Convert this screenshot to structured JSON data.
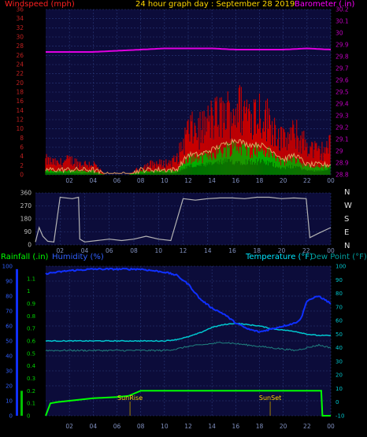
{
  "header": {
    "title": "24 hour graph day : September 28 2019",
    "left_label": "Windspeed (mph)",
    "right_label": "Barometer (.in)"
  },
  "lower_header": {
    "rainfall_label": "Rainfall (.in)",
    "humidity_label": "Humidity (%)",
    "temperature_label": "Temperature (°F)",
    "dewpoint_label": "Dew Point (°F)"
  },
  "colors": {
    "background": "#000000",
    "plot_bg": "#0c0c3a",
    "grid": "#2a3a7a",
    "axis_text": "#8090c0",
    "title": "#ffd700",
    "windspeed_label": "#ff2020",
    "barometer_label": "#ff00ff",
    "rainfall_label": "#00ff00",
    "humidity_label": "#3060ff",
    "temperature_label": "#00e5ff",
    "dewpoint_label": "#00a0a0"
  },
  "chart_data": [
    {
      "type": "area",
      "name": "wind",
      "x_ticks": [
        "02",
        "04",
        "06",
        "08",
        "10",
        "12",
        "14",
        "16",
        "18",
        "20",
        "22",
        "00"
      ],
      "left_axis": {
        "label": "Windspeed (mph)",
        "ylim": [
          0,
          36
        ],
        "ticks": [
          0,
          2,
          4,
          6,
          8,
          10,
          12,
          14,
          16,
          18,
          20,
          22,
          24,
          26,
          28,
          30,
          32,
          34,
          36
        ]
      },
      "right_axis": {
        "label": "Barometer (.in)",
        "ylim": [
          28.8,
          30.2
        ],
        "ticks": [
          "28.8",
          "28.9",
          "29",
          "29.1",
          "29.2",
          "29.3",
          "29.4",
          "29.5",
          "29.6",
          "29.7",
          "29.8",
          "29.9",
          "30",
          "30.1",
          "30.2"
        ]
      },
      "series": [
        {
          "name": "Windspeed (mph)",
          "color": "#e00000",
          "hours": [
            0,
            1,
            2,
            3,
            4,
            5,
            6,
            7,
            8,
            9,
            10,
            11,
            12,
            13,
            14,
            15,
            16,
            17,
            18,
            19,
            20,
            21,
            22,
            23,
            24
          ],
          "gust": [
            4,
            3,
            4,
            3,
            3,
            0,
            0,
            0,
            2,
            3,
            3,
            4,
            12,
            12,
            15,
            16,
            18,
            17,
            17,
            14,
            9,
            11,
            8,
            6,
            8
          ],
          "avg": [
            1,
            1,
            1,
            1,
            1,
            0,
            0,
            0,
            1,
            1,
            1,
            1,
            4,
            4,
            5,
            6,
            7,
            6,
            6,
            5,
            3,
            4,
            2,
            2,
            2
          ],
          "low": [
            0.5,
            0.5,
            0.5,
            0.3,
            0.5,
            0,
            0,
            0,
            0.3,
            0.5,
            0.5,
            0.5,
            2,
            2,
            2.5,
            3,
            3,
            3,
            3,
            2.5,
            1.5,
            2,
            1,
            1,
            1.5
          ]
        },
        {
          "name": "Barometer (.in)",
          "color": "#e000e0",
          "hours": [
            0,
            2,
            4,
            6,
            8,
            10,
            12,
            14,
            16,
            18,
            20,
            22,
            24
          ],
          "values": [
            29.84,
            29.84,
            29.84,
            29.85,
            29.86,
            29.87,
            29.87,
            29.87,
            29.86,
            29.86,
            29.86,
            29.87,
            29.86
          ]
        }
      ]
    },
    {
      "type": "line",
      "name": "wind_direction",
      "x_ticks": [
        "02",
        "04",
        "06",
        "08",
        "10",
        "12",
        "14",
        "16",
        "18",
        "20",
        "22",
        "00"
      ],
      "left_axis": {
        "ylim": [
          0,
          360
        ],
        "ticks": [
          "0",
          "90",
          "180",
          "270",
          "360"
        ]
      },
      "compass_labels": [
        "N",
        "W",
        "S",
        "E",
        "N"
      ],
      "series": [
        {
          "name": "Wind direction",
          "color": "#b4b4b4",
          "hours": [
            0,
            0.3,
            0.6,
            1,
            1.5,
            2,
            3,
            3.5,
            3.6,
            4,
            5,
            6,
            7,
            8,
            9,
            10,
            11,
            12,
            13,
            14,
            15,
            16,
            17,
            18,
            19,
            20,
            21,
            22,
            22.3,
            23,
            24
          ],
          "values": [
            20,
            120,
            60,
            25,
            20,
            330,
            320,
            330,
            40,
            20,
            30,
            40,
            30,
            40,
            60,
            40,
            30,
            320,
            310,
            320,
            325,
            325,
            320,
            330,
            330,
            320,
            325,
            320,
            50,
            80,
            120
          ]
        }
      ]
    },
    {
      "type": "line",
      "name": "temp_hum_rain",
      "x_ticks": [
        "02",
        "04",
        "06",
        "08",
        "10",
        "12",
        "14",
        "16",
        "18",
        "20",
        "22",
        "00"
      ],
      "rainfall_axis": {
        "label": "Rainfall (.in)",
        "ylim": [
          0,
          1.2
        ],
        "ticks": [
          "0",
          "0.1",
          "0.2",
          "0.3",
          "0.4",
          "0.5",
          "0.6",
          "0.7",
          "0.8",
          "0.9",
          "1",
          "1.1"
        ]
      },
      "humidity_axis": {
        "label": "Humidity (%)",
        "ylim": [
          0,
          100
        ],
        "ticks": [
          0,
          10,
          20,
          30,
          40,
          50,
          60,
          70,
          80,
          90,
          100
        ]
      },
      "temperature_axis": {
        "label": "Temperature (°F)",
        "ylim": [
          -10,
          100
        ],
        "ticks": [
          -10,
          0,
          10,
          20,
          30,
          40,
          50,
          60,
          70,
          80,
          90,
          100
        ]
      },
      "annotations": [
        {
          "label": "SunRise",
          "hour": 7.1
        },
        {
          "label": "SunSet",
          "hour": 18.9
        }
      ],
      "series": [
        {
          "name": "Humidity (%)",
          "color": "#1030ff",
          "hours": [
            0,
            2,
            4,
            6,
            8,
            10,
            11,
            12,
            13,
            14,
            15,
            16,
            17,
            18,
            19,
            20,
            21,
            21.5,
            22,
            23,
            24
          ],
          "values": [
            95,
            97,
            98,
            98,
            98,
            96,
            94,
            88,
            78,
            72,
            68,
            62,
            58,
            56,
            58,
            60,
            62,
            65,
            77,
            80,
            75
          ]
        },
        {
          "name": "Temperature (°F)",
          "color": "#00c8d0",
          "hours": [
            0,
            2,
            4,
            6,
            8,
            10,
            11,
            12,
            13,
            14,
            15,
            16,
            17,
            18,
            19,
            20,
            21,
            22,
            23,
            24
          ],
          "values": [
            45,
            45,
            45,
            45,
            45,
            45,
            46,
            48,
            51,
            55,
            57,
            58,
            57,
            56,
            54,
            53,
            52,
            50,
            49,
            49
          ]
        },
        {
          "name": "Dew Point (°F)",
          "color": "#208080",
          "hours": [
            0,
            2,
            4,
            6,
            8,
            10,
            11,
            12,
            13,
            14,
            15,
            16,
            17,
            18,
            19,
            20,
            21,
            22,
            23,
            24
          ],
          "values": [
            38,
            38,
            38,
            38,
            38,
            38,
            39,
            41,
            42,
            43,
            44,
            43,
            42,
            41,
            40,
            39,
            38,
            40,
            42,
            40
          ]
        },
        {
          "name": "Rainfall (.in)",
          "color": "#00ff00",
          "hours": [
            0,
            0.4,
            1,
            2,
            3,
            4,
            5,
            6,
            7,
            7.5,
            8,
            9,
            10,
            12,
            14,
            16,
            18,
            20,
            22,
            23.2,
            23.3,
            24
          ],
          "values": [
            0,
            0.1,
            0.11,
            0.12,
            0.13,
            0.14,
            0.145,
            0.15,
            0.16,
            0.18,
            0.2,
            0.2,
            0.2,
            0.2,
            0.2,
            0.2,
            0.2,
            0.2,
            0.2,
            0.2,
            0,
            0
          ]
        }
      ]
    }
  ]
}
